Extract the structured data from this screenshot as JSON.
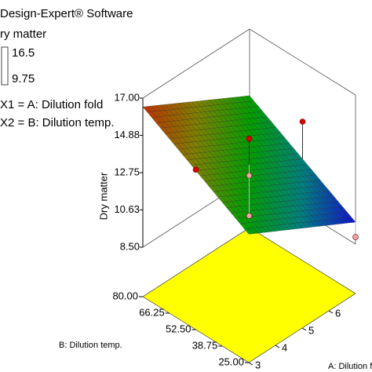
{
  "chart_data": {
    "type": "surface",
    "title": "Design-Expert® Software",
    "subtitle": "ry matter",
    "color_range": [
      9.75,
      16.5
    ],
    "high_color": "#cc0000",
    "low_color": "#0000cc",
    "colormap": [
      "#1010d0",
      "#008080",
      "#00a000",
      "#808000",
      "#c03000"
    ],
    "factor_labels": [
      "X1 = A: Dilution fold",
      "X2 = B: Dilution temp."
    ],
    "xlabel": "A: Dilution f",
    "ylabel": "B: Dilution temp.",
    "zlabel": "Dry matter",
    "xlim": [
      3,
      7
    ],
    "ylim": [
      25,
      80
    ],
    "zlim": [
      8.5,
      17
    ],
    "xticks": [
      3,
      4,
      5,
      6
    ],
    "yticks": [
      {
        "value": 80,
        "label": "80.00"
      },
      66.25,
      {
        "value": 52.5,
        "label": "52.50"
      },
      38.75,
      {
        "value": 25,
        "label": "25.00"
      }
    ],
    "zticks": [
      {
        "value": 17,
        "label": "17.00"
      },
      14.88,
      12.75,
      10.63,
      {
        "value": 8.5,
        "label": "8.50"
      }
    ],
    "floor_color": "#ffff00",
    "surface": {
      "x": [
        3,
        7
      ],
      "y": [
        25,
        80
      ],
      "z": [
        [
          13.0,
          16.5
        ],
        [
          9.75,
          13.2
        ]
      ]
    },
    "points": {
      "x": [
        3,
        5,
        5,
        5,
        7,
        7
      ],
      "y": [
        52.5,
        52.5,
        52.5,
        52.5,
        52.5,
        25
      ],
      "z": [
        14.8,
        14.6,
        12.5,
        10.2,
        13.6,
        8.9
      ]
    }
  }
}
